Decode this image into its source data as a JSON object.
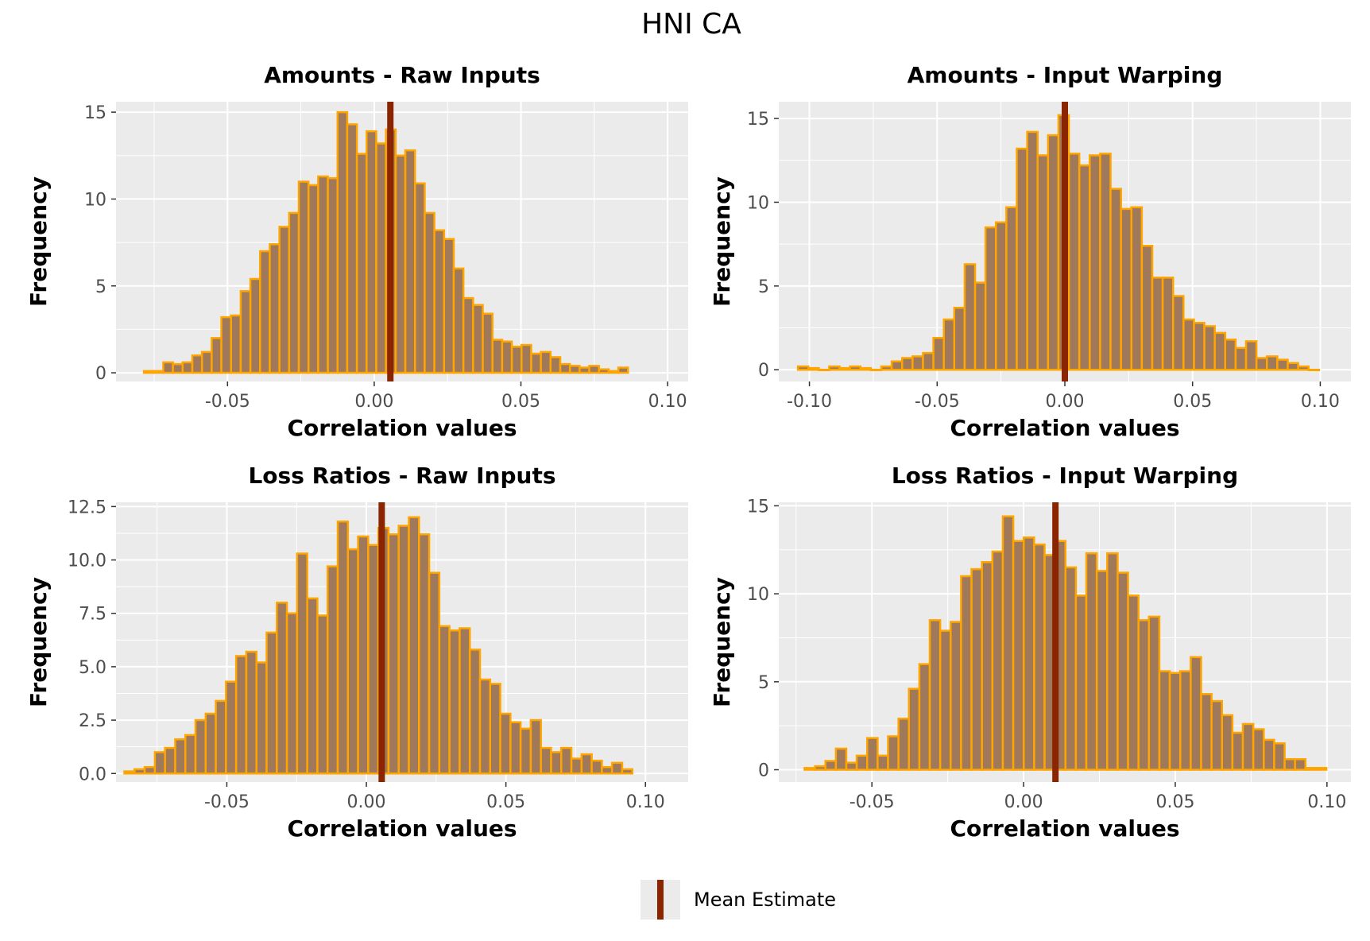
{
  "figure": {
    "title": "HNI CA"
  },
  "colors": {
    "panel_bg": "#EBEBEB",
    "grid": "#FFFFFF",
    "bar_fill": "#A0785A",
    "bar_edge": "#FFA500",
    "mean_line": "#8B2500"
  },
  "legend": {
    "label": "Mean Estimate",
    "position": "bottom"
  },
  "chart_data": [
    {
      "type": "bar",
      "title": "Amounts - Raw Inputs",
      "xlabel": "Correlation values",
      "ylabel": "Frequency",
      "xlim": [
        -0.088,
        0.107
      ],
      "ylim": [
        -0.5,
        15.6
      ],
      "xticks": [
        -0.05,
        0.0,
        0.05,
        0.1
      ],
      "xtick_labels": [
        "-0.05",
        "0.00",
        "0.05",
        "0.10"
      ],
      "yticks": [
        0,
        5,
        10,
        15
      ],
      "ytick_labels": [
        "0",
        "5",
        "10",
        "15"
      ],
      "bin_width": 0.0033,
      "x_start": -0.0785,
      "values": [
        0.1,
        0.1,
        0.6,
        0.5,
        0.6,
        1.0,
        1.2,
        2.0,
        3.2,
        3.3,
        4.7,
        5.4,
        7.0,
        7.4,
        8.4,
        9.2,
        11.0,
        10.8,
        11.3,
        11.2,
        15.0,
        14.3,
        12.6,
        13.9,
        13.2,
        14.0,
        12.5,
        12.8,
        10.9,
        9.2,
        8.2,
        7.7,
        6.0,
        4.3,
        3.9,
        3.4,
        1.9,
        1.8,
        1.5,
        1.6,
        1.1,
        1.2,
        0.9,
        0.5,
        0.4,
        0.3,
        0.4,
        0.2,
        0.1,
        0.3
      ],
      "mean_estimate": 0.0055
    },
    {
      "type": "bar",
      "title": "Amounts - Input Warping",
      "xlabel": "Correlation values",
      "ylabel": "Frequency",
      "xlim": [
        -0.112,
        0.112
      ],
      "ylim": [
        -0.7,
        16.0
      ],
      "xticks": [
        -0.1,
        -0.05,
        0.0,
        0.05,
        0.1
      ],
      "xtick_labels": [
        "-0.10",
        "-0.05",
        "0.00",
        "0.05",
        "0.10"
      ],
      "yticks": [
        0,
        5,
        10,
        15
      ],
      "ytick_labels": [
        "0",
        "5",
        "10",
        "15"
      ],
      "bin_width": 0.00408,
      "x_start": -0.1045,
      "values": [
        0.2,
        0.1,
        0.0,
        0.2,
        0.1,
        0.2,
        0.1,
        0.0,
        0.2,
        0.5,
        0.7,
        0.8,
        1.0,
        1.9,
        3.0,
        3.7,
        6.3,
        5.2,
        8.5,
        8.8,
        9.7,
        13.2,
        14.2,
        12.8,
        14.0,
        15.2,
        12.9,
        12.2,
        12.8,
        12.9,
        10.8,
        9.6,
        9.7,
        7.4,
        5.5,
        5.5,
        4.4,
        3.0,
        2.8,
        2.6,
        2.2,
        1.8,
        1.3,
        1.7,
        0.7,
        0.8,
        0.6,
        0.4,
        0.2,
        0.0
      ],
      "mean_estimate": 0.0
    },
    {
      "type": "bar",
      "title": "Loss Ratios - Raw Inputs",
      "xlabel": "Correlation values",
      "ylabel": "Frequency",
      "xlim": [
        -0.0897,
        0.1153
      ],
      "ylim": [
        -0.4,
        12.7
      ],
      "xticks": [
        -0.05,
        0.0,
        0.05,
        0.1
      ],
      "xtick_labels": [
        "-0.05",
        "0.00",
        "0.05",
        "0.10"
      ],
      "yticks": [
        0,
        2.5,
        5,
        7.5,
        10,
        12.5
      ],
      "ytick_labels": [
        "0.0",
        "2.5",
        "5.0",
        "7.5",
        "10.0",
        "12.5"
      ],
      "bin_width": 0.00364,
      "x_start": -0.0867,
      "values": [
        0.1,
        0.2,
        0.3,
        1.0,
        1.2,
        1.6,
        1.8,
        2.5,
        2.8,
        3.4,
        4.3,
        5.5,
        5.7,
        5.2,
        6.6,
        8.0,
        7.5,
        10.3,
        8.2,
        7.4,
        9.7,
        11.8,
        10.5,
        11.1,
        10.7,
        11.5,
        11.2,
        11.6,
        12.0,
        11.2,
        9.4,
        6.9,
        6.7,
        6.8,
        5.8,
        4.4,
        4.2,
        2.8,
        2.4,
        2.1,
        2.5,
        1.2,
        1.0,
        1.2,
        0.7,
        0.9,
        0.6,
        0.3,
        0.5,
        0.2
      ],
      "mean_estimate": 0.0055
    },
    {
      "type": "bar",
      "title": "Loss Ratios - Input Warping",
      "xlabel": "Correlation values",
      "ylabel": "Frequency",
      "xlim": [
        -0.0807,
        0.1079
      ],
      "ylim": [
        -0.7,
        15.2
      ],
      "xticks": [
        -0.05,
        0.0,
        0.05,
        0.1
      ],
      "xtick_labels": [
        "-0.05",
        "0.00",
        "0.05",
        "0.10"
      ],
      "yticks": [
        0,
        5,
        10,
        15
      ],
      "ytick_labels": [
        "0",
        "5",
        "10",
        "15"
      ],
      "bin_width": 0.00344,
      "x_start": -0.0722,
      "values": [
        0.1,
        0.2,
        0.5,
        1.2,
        0.4,
        0.8,
        1.8,
        0.8,
        1.9,
        2.9,
        4.6,
        6.0,
        8.5,
        7.9,
        8.4,
        11.0,
        11.4,
        11.8,
        12.4,
        14.4,
        13.0,
        13.2,
        12.8,
        12.2,
        13.0,
        11.5,
        9.9,
        12.3,
        11.3,
        12.3,
        11.2,
        9.9,
        8.5,
        8.7,
        5.6,
        5.5,
        5.6,
        6.4,
        4.3,
        3.9,
        3.1,
        2.1,
        2.6,
        2.3,
        1.7,
        1.5,
        0.6,
        0.6,
        0.1,
        0.1
      ],
      "mean_estimate": 0.0105
    }
  ]
}
